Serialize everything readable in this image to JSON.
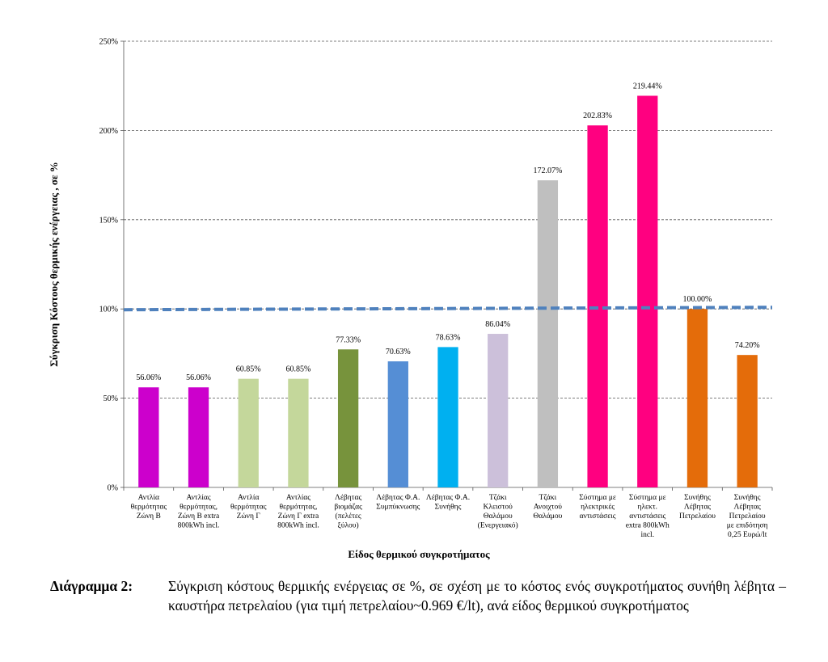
{
  "chart_data": {
    "type": "bar",
    "categories": [
      "Αντλία θερμότητας Ζώνη Β",
      "Αντλίας θερμότητας, Ζώνη Β extra 800kWh incl.",
      "Αντλία θερμότητας Ζώνη Γ",
      "Αντλίας θερμότητας, Ζώνη Γ extra 800kWh incl.",
      "Λέβητας βιομάζας (πελέτες ξύλου)",
      "Λέβητας Φ.Α. Συμπύκνωσης",
      "Λέβητας Φ.Α. Συνήθης",
      "Τζάκι Κλειστού Θαλάμου (Ενεργειακό)",
      "Τζάκι Ανοιχτού Θαλάμου",
      "Σύστημα με ηλεκτρικές αντιστάσεις",
      "Σύστημα με ηλεκτ. αντιστάσεις extra 800kWh incl.",
      "Συνήθης Λέβητας Πετρελαίου",
      "Συνήθης Λέβητας Πετρελαίου με επιδότηση 0,25 Ευρώ/lt"
    ],
    "category_lines": [
      [
        "Αντλία",
        "θερμότητας",
        "Ζώνη Β"
      ],
      [
        "Αντλίας",
        "θερμότητας,",
        "Ζώνη Β extra",
        "800kWh incl."
      ],
      [
        "Αντλία",
        "θερμότητας",
        "Ζώνη Γ"
      ],
      [
        "Αντλίας",
        "θερμότητας,",
        "Ζώνη Γ extra",
        "800kWh incl."
      ],
      [
        "Λέβητας",
        "βιομάζας",
        "(πελέτες",
        "ξύλου)"
      ],
      [
        "Λέβητας Φ.Α.",
        "Συμπύκνωσης"
      ],
      [
        "Λέβητας Φ.Α.",
        "Συνήθης"
      ],
      [
        "Τζάκι",
        "Κλειστού",
        "Θαλάμου",
        "(Ενεργειακό)"
      ],
      [
        "Τζάκι",
        "Ανοιχτού",
        "Θαλάμου"
      ],
      [
        "Σύστημα με",
        "ηλεκτρικές",
        "αντιστάσεις"
      ],
      [
        "Σύστημα με",
        "ηλεκτ.",
        "αντιστάσεις",
        "extra 800kWh",
        "incl."
      ],
      [
        "Συνήθης",
        "Λέβητας",
        "Πετρελαίου"
      ],
      [
        "Συνήθης",
        "Λέβητας",
        "Πετρελαίου",
        "με επιδότηση",
        "0,25 Ευρώ/lt"
      ]
    ],
    "values": [
      56.06,
      56.06,
      60.85,
      60.85,
      77.33,
      70.63,
      78.63,
      86.04,
      172.07,
      202.83,
      219.44,
      100.0,
      74.2
    ],
    "data_labels": [
      "56.06%",
      "56.06%",
      "60.85%",
      "60.85%",
      "77.33%",
      "70.63%",
      "78.63%",
      "86.04%",
      "172.07%",
      "202.83%",
      "219.44%",
      "100.00%",
      "74.20%"
    ],
    "colors": [
      "#cc00cc",
      "#cc00cc",
      "#c4d79b",
      "#c4d79b",
      "#77933c",
      "#558ed5",
      "#00b0f0",
      "#ccc0da",
      "#bfbfbf",
      "#ff0080",
      "#ff0080",
      "#e46c0a",
      "#e46c0a"
    ],
    "ylim": [
      0,
      250
    ],
    "y_ticks": [
      0,
      50,
      100,
      150,
      200,
      250
    ],
    "y_tick_labels": [
      "0%",
      "50%",
      "100%",
      "150%",
      "200%",
      "250%"
    ],
    "xlabel": "Είδος θερμικού συγκροτήματος",
    "ylabel": "Σύγκριση Κόστους θερμικής ενέργειας , σε %",
    "reference_line": {
      "value": 100,
      "style": "dashed",
      "color": "#4f81bd"
    },
    "grid": "horizontal dashed"
  },
  "caption": {
    "number": "Διάγραμμα 2:",
    "text": "Σύγκριση κόστους θερμικής ενέργειας σε %, σε σχέση με το κόστος ενός συγκροτήματος συνήθη λέβητα – καυστήρα πετρελαίου (για τιμή πετρελαίου~0.969 €/lt), ανά είδος θερμικού συγκροτήματος"
  }
}
